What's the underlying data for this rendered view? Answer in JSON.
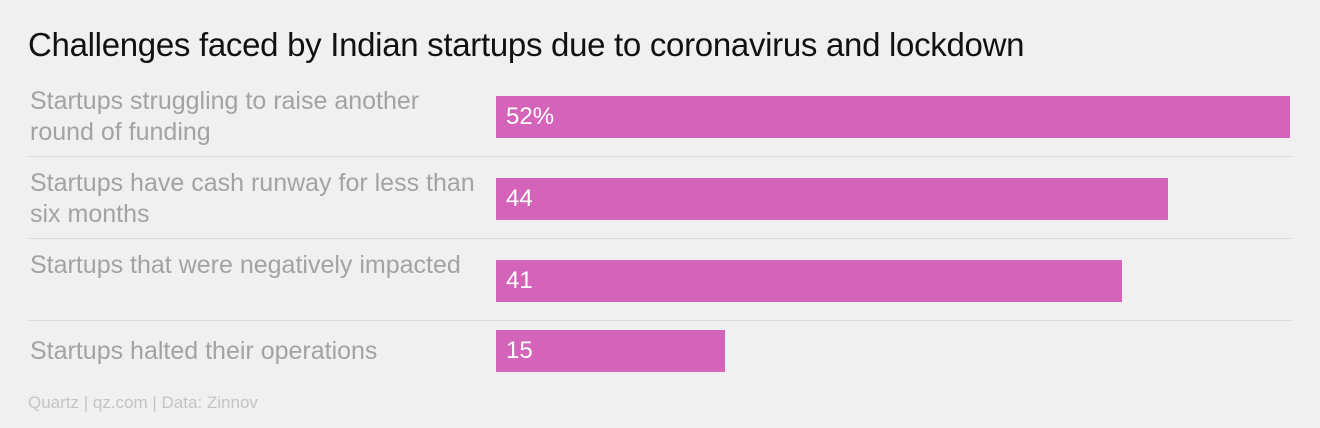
{
  "chart_data": {
    "type": "bar",
    "orientation": "horizontal",
    "title": "Challenges faced by Indian startups due to coronavirus and lockdown",
    "categories": [
      "Startups struggling to raise another round of funding",
      "Startups have cash runway for less than six months",
      "Startups that were negatively impacted",
      "Startups halted their operations"
    ],
    "values": [
      52,
      44,
      41,
      15
    ],
    "value_labels": [
      "52%",
      "44",
      "41",
      "15"
    ],
    "unit": "%",
    "xlim": [
      0,
      52
    ],
    "bar_color": "#d464b9",
    "grid": false
  },
  "footer": "Quartz | qz.com | Data: Zinnov"
}
